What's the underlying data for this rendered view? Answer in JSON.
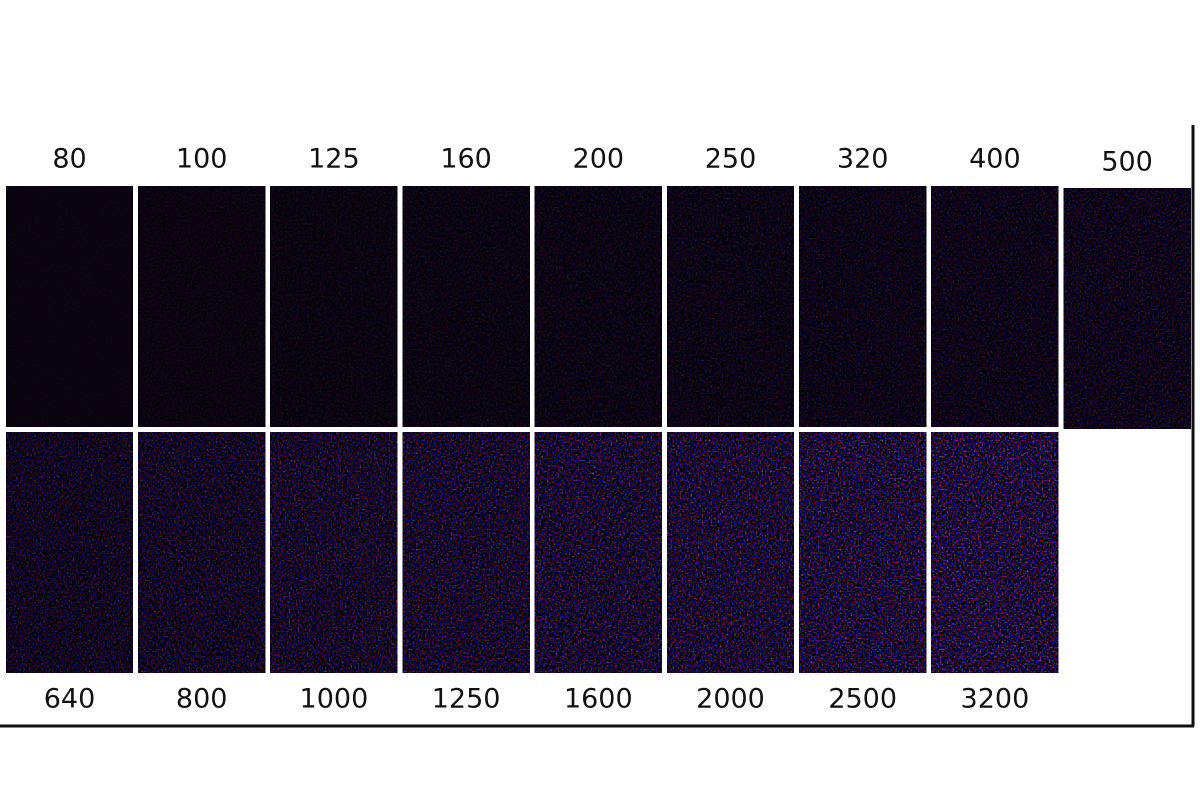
{
  "top_row": [
    "80",
    "100",
    "125",
    "160",
    "200",
    "250",
    "320",
    "400",
    "500"
  ],
  "bottom_row": [
    "640",
    "800",
    "1000",
    "1250",
    "1600",
    "2000",
    "2500",
    "3200"
  ]
}
